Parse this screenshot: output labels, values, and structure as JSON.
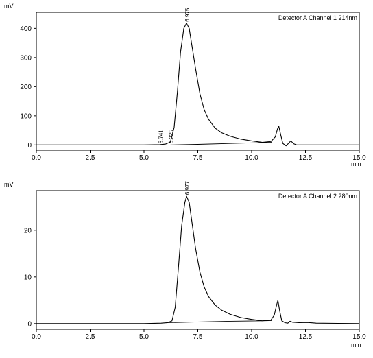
{
  "chart_data": [
    {
      "type": "line",
      "title": "",
      "legend": "Detector A Channel 1 214nm",
      "legend_position": "top-right",
      "ylabel": "mV",
      "xlabel": "min",
      "xlim": [
        0.0,
        15.0
      ],
      "ylim": [
        -18,
        455
      ],
      "xticks": [
        0.0,
        2.5,
        5.0,
        7.5,
        10.0,
        12.5,
        15.0
      ],
      "xtick_labels": [
        "0.0",
        "2.5",
        "5.0",
        "7.5",
        "10.0",
        "12.5",
        "15.0"
      ],
      "yticks": [
        0,
        100,
        200,
        300,
        400
      ],
      "ytick_labels": [
        "0",
        "100",
        "200",
        "300",
        "400"
      ],
      "grid": false,
      "peak_labels": [
        {
          "text": "5.741",
          "x": 5.741,
          "y": 0
        },
        {
          "text": "6.225",
          "x": 6.225,
          "y": 0
        },
        {
          "text": "6.975",
          "x": 6.975,
          "y": 418
        }
      ],
      "series": [
        {
          "x": [
            0.0,
            1.0,
            2.0,
            3.0,
            4.0,
            5.0,
            5.741,
            6.0,
            6.225,
            6.4,
            6.55,
            6.7,
            6.85,
            6.975,
            7.1,
            7.25,
            7.4,
            7.6,
            7.8,
            8.0,
            8.3,
            8.6,
            9.0,
            9.5,
            10.0,
            10.5,
            10.9,
            11.1,
            11.2,
            11.26,
            11.35,
            11.45,
            11.6,
            11.72,
            11.82,
            11.95,
            12.1,
            12.5,
            13.0,
            14.0,
            15.0
          ],
          "values": [
            0,
            0,
            0,
            0,
            0,
            0,
            1,
            3,
            10,
            60,
            180,
            320,
            400,
            418,
            400,
            330,
            260,
            175,
            120,
            88,
            58,
            42,
            30,
            20,
            14,
            9,
            12,
            28,
            55,
            65,
            35,
            5,
            -3,
            6,
            14,
            4,
            0,
            0,
            0,
            0,
            0
          ]
        },
        {
          "x": [
            6.225,
            7.5,
            9.0,
            10.5,
            10.95
          ],
          "values": [
            0,
            2,
            5,
            8,
            9
          ]
        }
      ]
    },
    {
      "type": "line",
      "title": "",
      "legend": "Detector A Channel 2 280nm",
      "legend_position": "top-right",
      "ylabel": "mV",
      "xlabel": "min",
      "xlim": [
        0.0,
        15.0
      ],
      "ylim": [
        -1.2,
        28.5
      ],
      "xticks": [
        0.0,
        2.5,
        5.0,
        7.5,
        10.0,
        12.5,
        15.0
      ],
      "xtick_labels": [
        "0.0",
        "2.5",
        "5.0",
        "7.5",
        "10.0",
        "12.5",
        "15.0"
      ],
      "yticks": [
        0,
        10,
        20
      ],
      "ytick_labels": [
        "0",
        "10",
        "20"
      ],
      "grid": false,
      "peak_labels": [
        {
          "text": "6.977",
          "x": 6.977,
          "y": 27.3
        }
      ],
      "series": [
        {
          "x": [
            0.0,
            1.0,
            2.0,
            3.0,
            4.0,
            5.0,
            5.8,
            6.1,
            6.3,
            6.45,
            6.6,
            6.75,
            6.9,
            6.977,
            7.1,
            7.25,
            7.4,
            7.6,
            7.8,
            8.0,
            8.3,
            8.6,
            9.0,
            9.5,
            10.0,
            10.5,
            10.9,
            11.05,
            11.15,
            11.22,
            11.3,
            11.4,
            11.55,
            11.68,
            11.78,
            11.9,
            12.2,
            12.6,
            13.0,
            14.0,
            15.0
          ],
          "values": [
            0,
            0,
            0,
            0,
            0,
            0,
            0.1,
            0.2,
            0.6,
            3.5,
            12,
            21,
            26,
            27.3,
            26,
            21,
            16,
            11,
            7.8,
            5.8,
            4.0,
            2.9,
            2.0,
            1.3,
            0.9,
            0.6,
            0.8,
            1.8,
            3.8,
            5.0,
            2.8,
            0.6,
            0.2,
            0.1,
            0.5,
            0.3,
            0.2,
            0.25,
            0.1,
            0.05,
            0.0
          ]
        },
        {
          "x": [
            6.1,
            7.5,
            9.0,
            10.5,
            10.95
          ],
          "values": [
            0.2,
            0.35,
            0.5,
            0.6,
            0.65
          ]
        }
      ]
    }
  ]
}
